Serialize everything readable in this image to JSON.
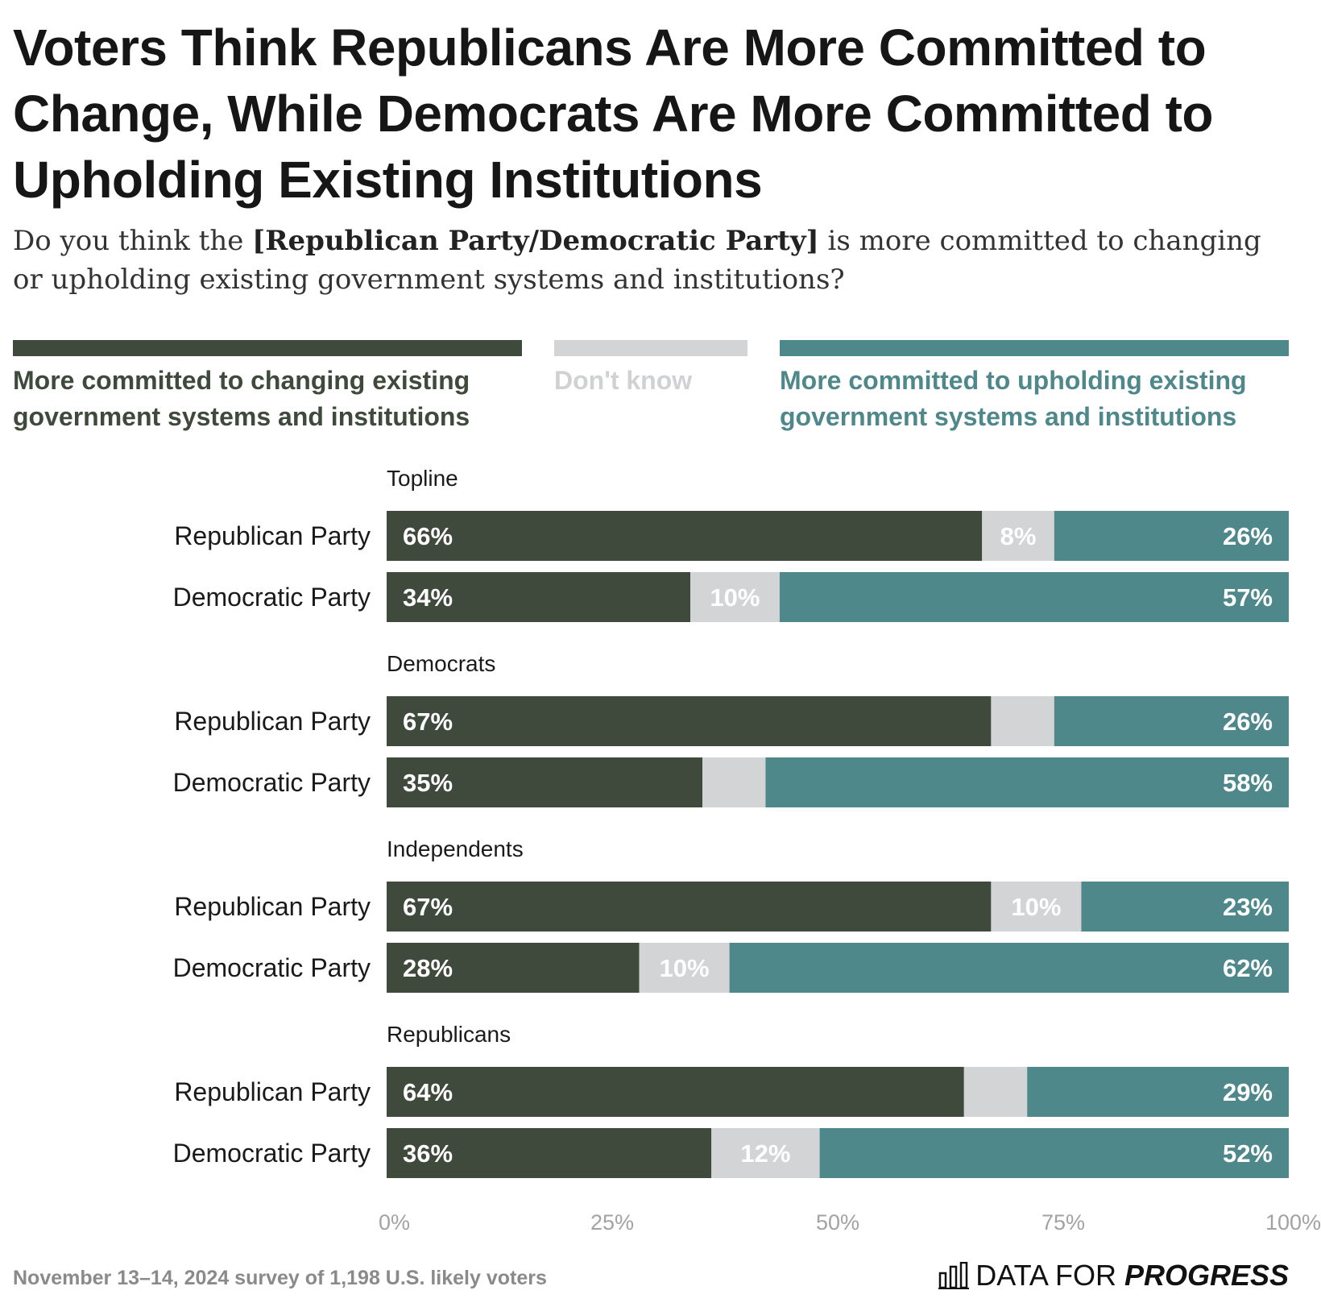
{
  "title": "Voters Think Republicans Are More Committed to Change, While Democrats Are More Committed to Upholding Existing Institutions",
  "subtitle": {
    "pre": "Do you think the ",
    "bold": "[Republican Party/Democratic Party]",
    "post": " is more committed to changing or upholding existing government systems and institutions?"
  },
  "legend": [
    {
      "label": "More committed to changing existing government systems and institutions",
      "color": "#3f4a3c"
    },
    {
      "label": "Don't know",
      "color": "#d3d4d6"
    },
    {
      "label": "More committed to upholding existing government systems and institutions",
      "color": "#4f888b"
    }
  ],
  "chart_data": {
    "type": "bar",
    "orientation": "horizontal-stacked-100",
    "series_names": [
      "More committed to changing existing government systems and institutions",
      "Don't know",
      "More committed to upholding existing government systems and institutions"
    ],
    "series_colors": [
      "#3f4a3c",
      "#d3d4d6",
      "#4f888b"
    ],
    "groups": [
      {
        "name": "Topline",
        "rows": [
          {
            "label": "Republican Party",
            "values": [
              66,
              8,
              26
            ],
            "labels": [
              "66%",
              "8%",
              "26%"
            ]
          },
          {
            "label": "Democratic Party",
            "values": [
              34,
              10,
              57
            ],
            "labels": [
              "34%",
              "10%",
              "57%"
            ]
          }
        ]
      },
      {
        "name": "Democrats",
        "rows": [
          {
            "label": "Republican Party",
            "values": [
              67,
              7,
              26
            ],
            "labels": [
              "67%",
              "",
              "26%"
            ]
          },
          {
            "label": "Democratic Party",
            "values": [
              35,
              7,
              58
            ],
            "labels": [
              "35%",
              "",
              "58%"
            ]
          }
        ]
      },
      {
        "name": "Independents",
        "rows": [
          {
            "label": "Republican Party",
            "values": [
              67,
              10,
              23
            ],
            "labels": [
              "67%",
              "10%",
              "23%"
            ]
          },
          {
            "label": "Democratic Party",
            "values": [
              28,
              10,
              62
            ],
            "labels": [
              "28%",
              "10%",
              "62%"
            ]
          }
        ]
      },
      {
        "name": "Republicans",
        "rows": [
          {
            "label": "Republican Party",
            "values": [
              64,
              7,
              29
            ],
            "labels": [
              "64%",
              "",
              "29%"
            ]
          },
          {
            "label": "Democratic Party",
            "values": [
              36,
              12,
              52
            ],
            "labels": [
              "36%",
              "12%",
              "52%"
            ]
          }
        ]
      }
    ],
    "x_ticks": [
      "0%",
      "25%",
      "50%",
      "75%",
      "100%"
    ],
    "x_tick_values": [
      0,
      25,
      50,
      75,
      100
    ],
    "xlim": [
      0,
      100
    ]
  },
  "footer": {
    "note": "November 13–14, 2024 survey of 1,198 U.S. likely voters",
    "brand_light": "DATA FOR ",
    "brand_bold": "PROGRESS"
  }
}
